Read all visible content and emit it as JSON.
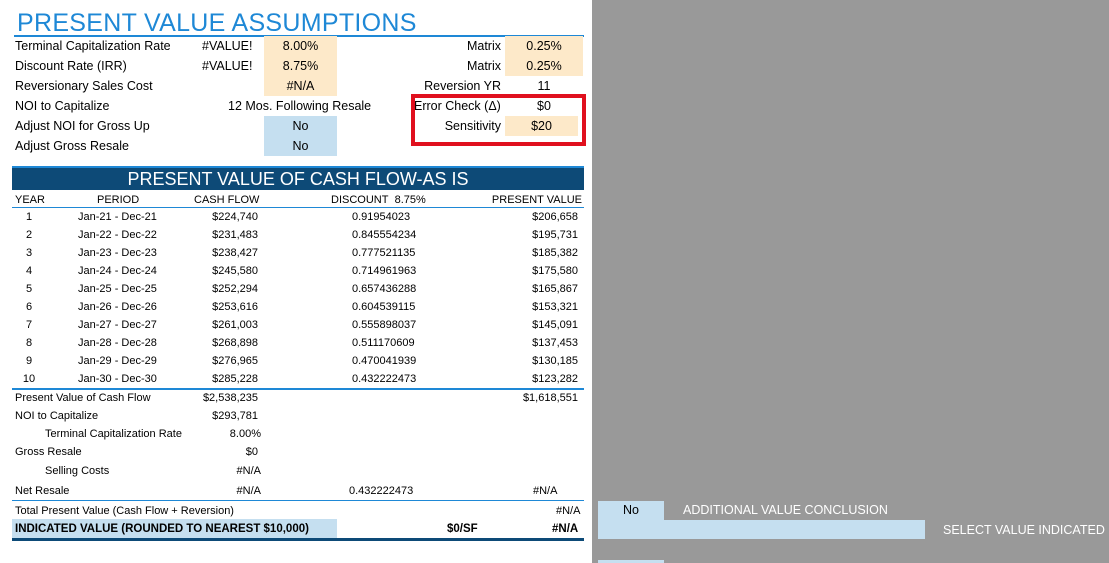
{
  "title": "PRESENT VALUE ASSUMPTIONS",
  "assumptions": {
    "terminal_cap_rate": {
      "label": "Terminal Capitalization Rate",
      "calc": "#VALUE!",
      "value": "8.00%"
    },
    "discount_rate": {
      "label": "Discount Rate (IRR)",
      "calc": "#VALUE!",
      "value": "8.75%"
    },
    "reversionary_sales_cost": {
      "label": "Reversionary Sales Cost",
      "value": "#N/A"
    },
    "noi_to_capitalize": {
      "label": "NOI to Capitalize",
      "value": "12 Mos. Following Resale"
    },
    "adjust_noi_gross_up": {
      "label": "Adjust NOI for Gross Up",
      "value": "No"
    },
    "adjust_gross_resale": {
      "label": "Adjust Gross Resale",
      "value": "No"
    },
    "matrix1": {
      "label": "Matrix",
      "value": "0.25%"
    },
    "matrix2": {
      "label": "Matrix",
      "value": "0.25%"
    },
    "reversion_yr": {
      "label": "Reversion YR",
      "value": "11"
    },
    "error_check": {
      "label": "Error Check (Δ)",
      "value": "$0"
    },
    "sensitivity": {
      "label": "Sensitivity",
      "value": "$20"
    }
  },
  "banner": "PRESENT VALUE OF CASH FLOW-AS IS",
  "columns": {
    "year": "YEAR",
    "period": "PERIOD",
    "cash_flow": "CASH FLOW",
    "discount": "DISCOUNT",
    "discount_rate": "8.75%",
    "present_value": "PRESENT VALUE"
  },
  "rows": [
    {
      "year": "1",
      "period": "Jan-21 - Dec-21",
      "cash_flow": "$224,740",
      "discount": "0.91954023",
      "pv": "$206,658"
    },
    {
      "year": "2",
      "period": "Jan-22 - Dec-22",
      "cash_flow": "$231,483",
      "discount": "0.845554234",
      "pv": "$195,731"
    },
    {
      "year": "3",
      "period": "Jan-23 - Dec-23",
      "cash_flow": "$238,427",
      "discount": "0.777521135",
      "pv": "$185,382"
    },
    {
      "year": "4",
      "period": "Jan-24 - Dec-24",
      "cash_flow": "$245,580",
      "discount": "0.714961963",
      "pv": "$175,580"
    },
    {
      "year": "5",
      "period": "Jan-25 - Dec-25",
      "cash_flow": "$252,294",
      "discount": "0.657436288",
      "pv": "$165,867"
    },
    {
      "year": "6",
      "period": "Jan-26 - Dec-26",
      "cash_flow": "$253,616",
      "discount": "0.604539115",
      "pv": "$153,321"
    },
    {
      "year": "7",
      "period": "Jan-27 - Dec-27",
      "cash_flow": "$261,003",
      "discount": "0.555898037",
      "pv": "$145,091"
    },
    {
      "year": "8",
      "period": "Jan-28 - Dec-28",
      "cash_flow": "$268,898",
      "discount": "0.511170609",
      "pv": "$137,453"
    },
    {
      "year": "9",
      "period": "Jan-29 - Dec-29",
      "cash_flow": "$276,965",
      "discount": "0.470041939",
      "pv": "$130,185"
    },
    {
      "year": "10",
      "period": "Jan-30 - Dec-30",
      "cash_flow": "$285,228",
      "discount": "0.432222473",
      "pv": "$123,282"
    }
  ],
  "summary": {
    "pv_cash_flow": {
      "label": "Present Value of Cash Flow",
      "cash_flow": "$2,538,235",
      "pv": "$1,618,551"
    },
    "noi_to_capitalize": {
      "label": "NOI to Capitalize",
      "value": "$293,781"
    },
    "terminal_cap_rate": {
      "label": "Terminal Capitalization Rate",
      "value": "8.00%"
    },
    "gross_resale": {
      "label": "Gross Resale",
      "value": "$0"
    },
    "selling_costs": {
      "label": "Selling Costs",
      "value": "#N/A"
    },
    "net_resale": {
      "label": "Net Resale",
      "value": "#N/A",
      "discount": "0.432222473",
      "pv": "#N/A"
    },
    "total_pv": {
      "label": "Total Present Value (Cash Flow + Reversion)",
      "pv": "#N/A"
    },
    "indicated_value": {
      "label": "INDICATED VALUE (ROUNDED TO NEAREST $10,000)",
      "per_sf": "$0/SF",
      "value": "#N/A"
    }
  },
  "side": {
    "additional_value_input": "No",
    "additional_value_label": "ADDITIONAL VALUE CONCLUSION",
    "select_value_label": "SELECT VALUE INDICATED"
  },
  "colors": {
    "accent_blue": "#1e88d6",
    "banner_navy": "#0d4a77",
    "input_tan": "#fde9c9",
    "input_blue": "#c5dff0",
    "error_red": "#e0101e",
    "grey_bg": "#999999"
  }
}
